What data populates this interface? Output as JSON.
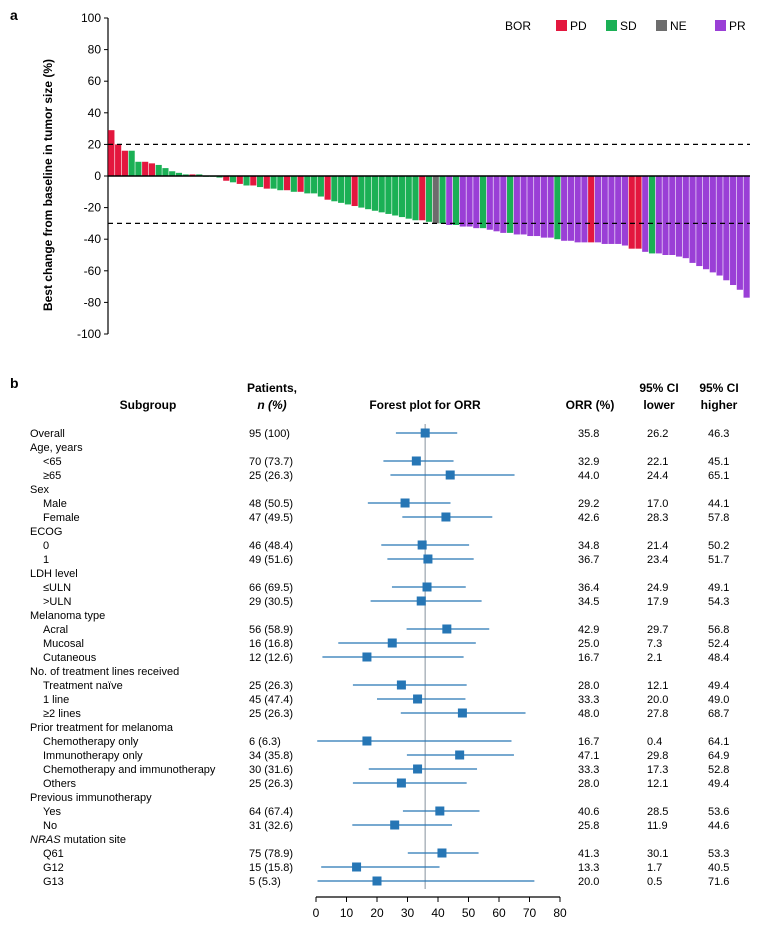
{
  "chart_data": [
    {
      "type": "bar",
      "panel_label": "a",
      "ylabel": "Best change from baseline in tumor size (%)",
      "ylim": [
        -100,
        100
      ],
      "yticks": [
        100,
        80,
        60,
        40,
        20,
        0,
        -20,
        -40,
        -60,
        -80,
        -100
      ],
      "reference_lines": [
        20,
        -30
      ],
      "legend": {
        "title": "BOR",
        "placement": "top-right",
        "entries": [
          {
            "code": "PD",
            "label": "PD",
            "color": "#e3173e"
          },
          {
            "code": "SD",
            "label": "SD",
            "color": "#1bb055"
          },
          {
            "code": "NE",
            "label": "NE",
            "color": "#6d6d6d"
          },
          {
            "code": "PR",
            "label": "PR",
            "color": "#9a3fd6"
          }
        ]
      },
      "bors": [
        "PD",
        "PD",
        "PD",
        "SD",
        "SD",
        "PD",
        "PD",
        "SD",
        "SD",
        "SD",
        "SD",
        "SD",
        "PD",
        "SD",
        "SD",
        "SD",
        "SD",
        "PD",
        "SD",
        "PD",
        "SD",
        "PD",
        "SD",
        "PD",
        "SD",
        "SD",
        "PD",
        "SD",
        "PD",
        "SD",
        "SD",
        "SD",
        "PD",
        "SD",
        "SD",
        "SD",
        "PD",
        "SD",
        "SD",
        "SD",
        "SD",
        "SD",
        "SD",
        "SD",
        "SD",
        "SD",
        "PD",
        "SD",
        "NE",
        "SD",
        "PR",
        "SD",
        "PR",
        "PR",
        "PR",
        "SD",
        "PR",
        "PR",
        "PR",
        "SD",
        "PR",
        "PR",
        "PR",
        "PR",
        "PR",
        "PR",
        "SD",
        "PR",
        "PR",
        "PR",
        "PR",
        "PD",
        "PR",
        "PR",
        "PR",
        "PR",
        "PR",
        "PD",
        "PD",
        "PR",
        "SD",
        "PR",
        "PR",
        "PR",
        "PR",
        "PR",
        "PR",
        "PR",
        "PR",
        "PR",
        "PR",
        "PR",
        "PR",
        "PR",
        "PR"
      ],
      "values": [
        29,
        20,
        16,
        16,
        9,
        9,
        8,
        7,
        5,
        3,
        2,
        1,
        1,
        1,
        0,
        0,
        -1,
        -3,
        -4,
        -5,
        -6,
        -6,
        -7,
        -8,
        -8,
        -9,
        -9,
        -10,
        -10,
        -11,
        -11,
        -13,
        -15,
        -16,
        -17,
        -18,
        -19,
        -20,
        -21,
        -22,
        -23,
        -24,
        -25,
        -26,
        -27,
        -28,
        -28,
        -29,
        -30,
        -30,
        -31,
        -31,
        -32,
        -32,
        -33,
        -33,
        -34,
        -35,
        -36,
        -36,
        -37,
        -37,
        -38,
        -38,
        -39,
        -39,
        -40,
        -41,
        -41,
        -42,
        -42,
        -42,
        -42,
        -43,
        -43,
        -43,
        -44,
        -46,
        -46,
        -48,
        -49,
        -49,
        -50,
        -50,
        -51,
        -52,
        -55,
        -57,
        -59,
        -61,
        -63,
        -66,
        -69,
        -72,
        -77
      ]
    },
    {
      "type": "forest",
      "panel_label": "b",
      "title": "Forest plot for ORR",
      "xlim": [
        0,
        80
      ],
      "xticks": [
        0,
        10,
        20,
        30,
        40,
        50,
        60,
        70,
        80
      ],
      "reference_line": 35.8,
      "marker_color": "#2676b5",
      "columns": {
        "subgroup": "Subgroup",
        "patients": [
          "Patients,",
          "n (%)"
        ],
        "orr": "ORR (%)",
        "lower": [
          "95% CI",
          "lower"
        ],
        "higher": [
          "95% CI",
          "higher"
        ]
      },
      "rows": [
        {
          "label": "Overall",
          "indent": false,
          "n": "95 (100)",
          "orr": "35.8",
          "lo": "26.2",
          "hi": "46.3"
        },
        {
          "label": "Age, years",
          "header": true
        },
        {
          "label": "<65",
          "indent": true,
          "n": "70 (73.7)",
          "orr": "32.9",
          "lo": "22.1",
          "hi": "45.1"
        },
        {
          "label": "≥65",
          "indent": true,
          "n": "25 (26.3)",
          "orr": "44.0",
          "lo": "24.4",
          "hi": "65.1"
        },
        {
          "label": "Sex",
          "header": true
        },
        {
          "label": "Male",
          "indent": true,
          "n": "48 (50.5)",
          "orr": "29.2",
          "lo": "17.0",
          "hi": "44.1"
        },
        {
          "label": "Female",
          "indent": true,
          "n": "47 (49.5)",
          "orr": "42.6",
          "lo": "28.3",
          "hi": "57.8"
        },
        {
          "label": "ECOG",
          "header": true
        },
        {
          "label": "0",
          "indent": true,
          "n": "46 (48.4)",
          "orr": "34.8",
          "lo": "21.4",
          "hi": "50.2"
        },
        {
          "label": "1",
          "indent": true,
          "n": "49 (51.6)",
          "orr": "36.7",
          "lo": "23.4",
          "hi": "51.7"
        },
        {
          "label": "LDH level",
          "header": true
        },
        {
          "label": "≤ULN",
          "indent": true,
          "n": "66 (69.5)",
          "orr": "36.4",
          "lo": "24.9",
          "hi": "49.1"
        },
        {
          "label": ">ULN",
          "indent": true,
          "n": "29 (30.5)",
          "orr": "34.5",
          "lo": "17.9",
          "hi": "54.3"
        },
        {
          "label": "Melanoma type",
          "header": true
        },
        {
          "label": "Acral",
          "indent": true,
          "n": "56 (58.9)",
          "orr": "42.9",
          "lo": "29.7",
          "hi": "56.8"
        },
        {
          "label": "Mucosal",
          "indent": true,
          "n": "16 (16.8)",
          "orr": "25.0",
          "lo": "7.3",
          "hi": "52.4"
        },
        {
          "label": "Cutaneous",
          "indent": true,
          "n": "12 (12.6)",
          "orr": "16.7",
          "lo": "2.1",
          "hi": "48.4"
        },
        {
          "label": "No. of treatment lines received",
          "header": true
        },
        {
          "label": "Treatment naïve",
          "indent": true,
          "n": "25 (26.3)",
          "orr": "28.0",
          "lo": "12.1",
          "hi": "49.4"
        },
        {
          "label": "1 line",
          "indent": true,
          "n": "45 (47.4)",
          "orr": "33.3",
          "lo": "20.0",
          "hi": "49.0"
        },
        {
          "label": "≥2 lines",
          "indent": true,
          "n": "25 (26.3)",
          "orr": "48.0",
          "lo": "27.8",
          "hi": "68.7"
        },
        {
          "label": "Prior treatment for melanoma",
          "header": true
        },
        {
          "label": "Chemotherapy only",
          "indent": true,
          "n": "6 (6.3)",
          "orr": "16.7",
          "lo": "0.4",
          "hi": "64.1"
        },
        {
          "label": "Immunotherapy only",
          "indent": true,
          "n": "34 (35.8)",
          "orr": "47.1",
          "lo": "29.8",
          "hi": "64.9"
        },
        {
          "label": "Chemotherapy and immunotherapy",
          "indent": true,
          "n": "30 (31.6)",
          "orr": "33.3",
          "lo": "17.3",
          "hi": "52.8"
        },
        {
          "label": "Others",
          "indent": true,
          "n": "25 (26.3)",
          "orr": "28.0",
          "lo": "12.1",
          "hi": "49.4"
        },
        {
          "label": "Previous immunotherapy",
          "header": true
        },
        {
          "label": "Yes",
          "indent": true,
          "n": "64 (67.4)",
          "orr": "40.6",
          "lo": "28.5",
          "hi": "53.6"
        },
        {
          "label": "No",
          "indent": true,
          "n": "31 (32.6)",
          "orr": "25.8",
          "lo": "11.9",
          "hi": "44.6"
        },
        {
          "label": "NRAS mutation site",
          "header": true,
          "italic_prefix": "NRAS",
          "rest": " mutation site"
        },
        {
          "label": "Q61",
          "indent": true,
          "n": "75 (78.9)",
          "orr": "41.3",
          "lo": "30.1",
          "hi": "53.3"
        },
        {
          "label": "G12",
          "indent": true,
          "n": "15 (15.8)",
          "orr": "13.3",
          "lo": "1.7",
          "hi": "40.5"
        },
        {
          "label": "G13",
          "indent": true,
          "n": "5 (5.3)",
          "orr": "20.0",
          "lo": "0.5",
          "hi": "71.6"
        }
      ]
    }
  ]
}
